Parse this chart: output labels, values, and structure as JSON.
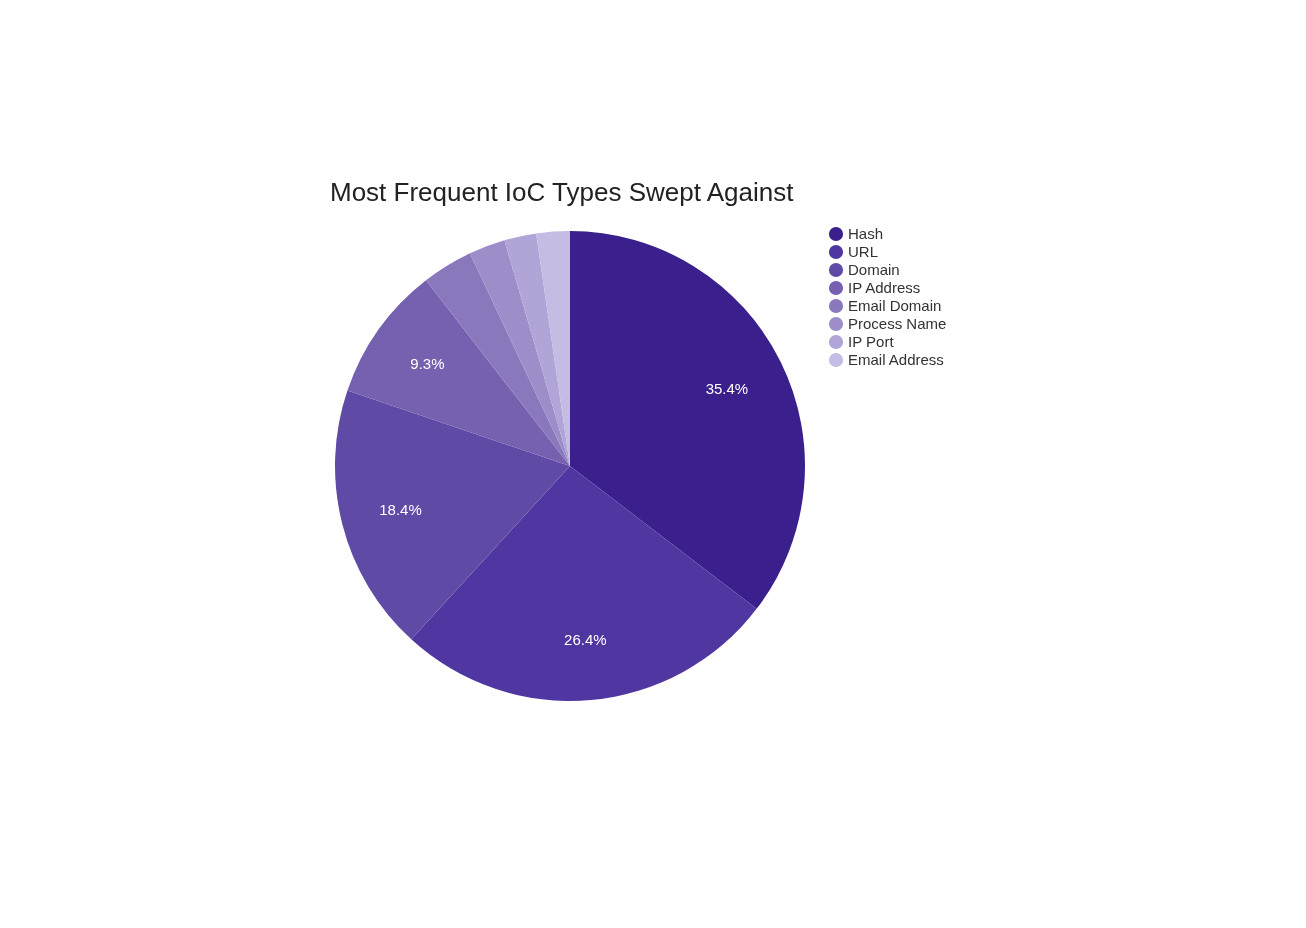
{
  "chart_data": {
    "type": "pie",
    "title": "Most Frequent IoC Types Swept Against",
    "categories": [
      "Hash",
      "URL",
      "Domain",
      "IP Address",
      "Email Domain",
      "Process Name",
      "IP Port",
      "Email Address"
    ],
    "values": [
      35.4,
      26.4,
      18.4,
      9.3,
      3.5,
      2.5,
      2.2,
      2.3
    ],
    "value_labels": [
      "35.4%",
      "26.4%",
      "18.4%",
      "9.3%",
      null,
      null,
      null,
      null
    ],
    "colors": [
      "#3b1f8c",
      "#4f36a0",
      "#5f4ba6",
      "#7561b0",
      "#8a78bd",
      "#9d8dc9",
      "#b0a5d6",
      "#c5bce3"
    ],
    "legend": "right"
  }
}
